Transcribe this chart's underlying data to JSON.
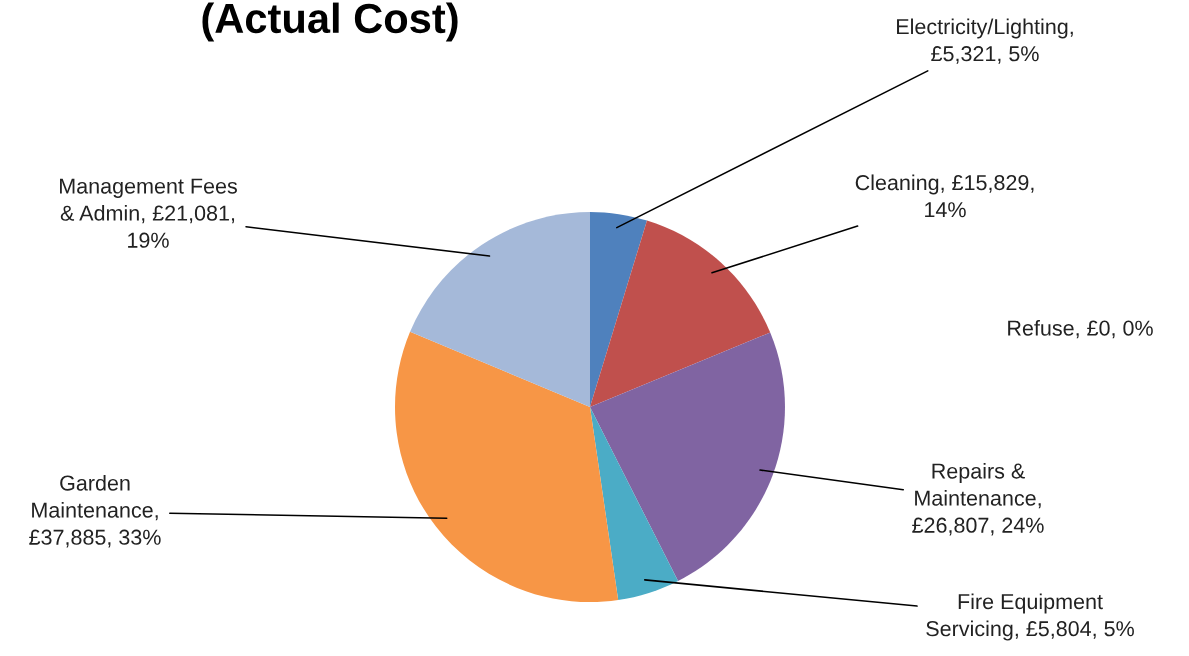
{
  "chart_data": {
    "type": "pie",
    "title": "(Actual Cost)",
    "categories": [
      "Electricity/Lighting, £5,321, 5%",
      "Cleaning, £15,829, 14%",
      "Refuse, £0, 0%",
      "Repairs & Maintenance, £26,807, 24%",
      "Fire Equipment Servicing, £5,804, 5%",
      "Garden Maintenance, £37,885, 33%",
      "Management Fees & Admin, £21,081, 19%"
    ],
    "values": [
      5321,
      15829,
      0,
      26807,
      5804,
      37885,
      21081
    ],
    "colors": [
      "#4f81bd",
      "#c0504d",
      "#9bbb59",
      "#8064a2",
      "#4bacc6",
      "#f79646",
      "#a5b9d9"
    ]
  }
}
